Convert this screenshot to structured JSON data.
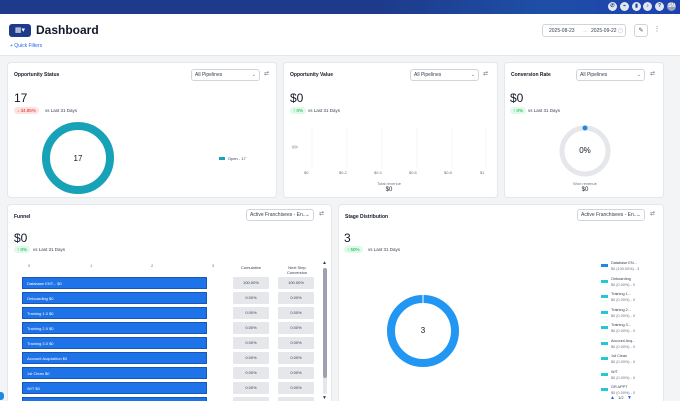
{
  "topbar": {
    "icons": [
      {
        "name": "phone-icon",
        "glyph": "✆"
      },
      {
        "name": "link-icon",
        "glyph": "⌁"
      },
      {
        "name": "megaphone-icon",
        "glyph": "▮"
      },
      {
        "name": "bell-icon",
        "glyph": "♪"
      },
      {
        "name": "help-icon",
        "glyph": "?"
      }
    ],
    "avatar": "SN"
  },
  "header": {
    "icon_glyph": "▦▾",
    "title": "Dashboard",
    "quick_filters": "+ Quick Filters",
    "date_start": "2025-08-23",
    "date_arrow": "→",
    "date_end": "2025-09-22",
    "calendar_glyph": "▢",
    "edit_glyph": "✎",
    "more_glyph": "⋮"
  },
  "cards": {
    "opportunity_status": {
      "title": "Opportunity Status",
      "dropdown": "All Pipelines",
      "value": "17",
      "delta": "↓ 34.85%",
      "vs": "vs Last 31 Days",
      "center": "17",
      "legend": "Open - 17",
      "legend_color": "#17a2b8"
    },
    "opportunity_value": {
      "title": "Opportunity Value",
      "dropdown": "All Pipelines",
      "value": "$0",
      "delta": "↑ 0%",
      "vs": "vs Last 31 Days",
      "ticks": [
        "$0",
        "$0.2",
        "$0.4",
        "$0.6",
        "$0.8",
        "$1"
      ],
      "total_label": "Total revenue",
      "total_value": "$0"
    },
    "conversion_rate": {
      "title": "Conversion Rate",
      "dropdown": "All Pipelines",
      "value": "$0",
      "delta": "↑ 0%",
      "vs": "vs Last 31 Days",
      "center": "0%",
      "won_label": "Won revenue",
      "won_value": "$0"
    },
    "funnel": {
      "title": "Funnel",
      "dropdown": "Active Franchisees - En...",
      "value": "$0",
      "delta": "↑ 0%",
      "vs": "vs Last 31 Days",
      "axis": [
        "0",
        "1",
        "2",
        "3"
      ],
      "col_cumulative": "Cumulative",
      "col_next": "Next Step Conversion",
      "rows": [
        {
          "label": "Database ENT... $0",
          "cum": "100.00%",
          "next": "100.00%"
        },
        {
          "label": "Onboarding   $0",
          "cum": "0.00%",
          "next": "0.00%"
        },
        {
          "label": "Training 1.0   $0",
          "cum": "0.00%",
          "next": "0.00%"
        },
        {
          "label": "Training 2.0   $0",
          "cum": "0.00%",
          "next": "0.00%"
        },
        {
          "label": "Training 3.0   $0",
          "cum": "0.00%",
          "next": "0.00%"
        },
        {
          "label": "Account Acquisition   $0",
          "cum": "0.00%",
          "next": "0.00%"
        },
        {
          "label": "1st Clean   $0",
          "cum": "0.00%",
          "next": "0.00%"
        },
        {
          "label": "W/T   $0",
          "cum": "0.00%",
          "next": "0.00%"
        }
      ]
    },
    "stage_distribution": {
      "title": "Stage Distribution",
      "dropdown": "Active Franchisees - En...",
      "value": "3",
      "delta": "↑ 50%",
      "vs": "vs Last 31 Days",
      "center": "3",
      "items": [
        {
          "name": "Database EN...",
          "val": "$0 (100.00%) - 3",
          "color": "#1e88e5"
        },
        {
          "name": "Onboarding",
          "val": "$0 (0.00%) - 0",
          "color": "#26c6da"
        },
        {
          "name": "Training 1...",
          "val": "$0 (0.00%) - 0",
          "color": "#26c6da"
        },
        {
          "name": "Training 2...",
          "val": "$0 (0.00%) - 0",
          "color": "#26c6da"
        },
        {
          "name": "Training 3...",
          "val": "$0 (0.00%) - 0",
          "color": "#26c6da"
        },
        {
          "name": "Account Acq...",
          "val": "$0 (0.00%) - 0",
          "color": "#26c6da"
        },
        {
          "name": "1st Clean",
          "val": "$0 (0.00%) - 0",
          "color": "#26c6da"
        },
        {
          "name": "W/T",
          "val": "$0 (0.00%) - 0",
          "color": "#26c6da"
        },
        {
          "name": "GR APPT",
          "val": "$0 (0.00%) - 0",
          "color": "#26c6da"
        }
      ],
      "pager": "1/2"
    }
  }
}
